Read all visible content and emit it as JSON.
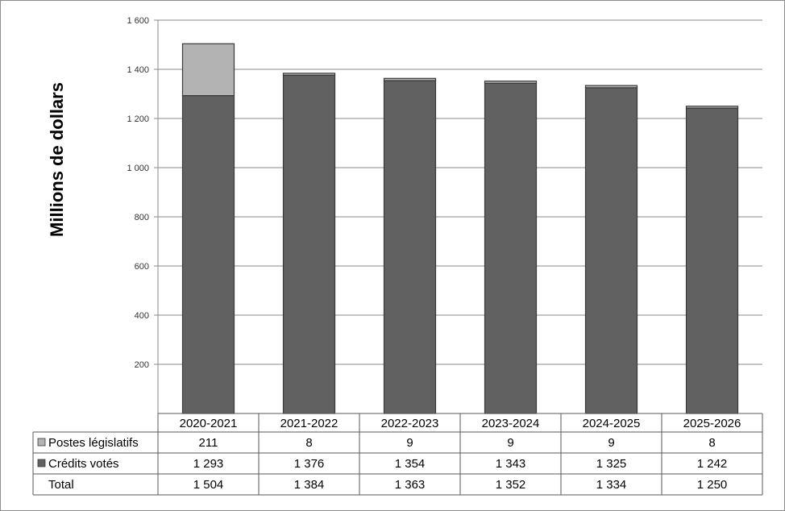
{
  "chart_data": {
    "type": "bar",
    "stacked": true,
    "title": "",
    "ylabel": "Millions  de dollars",
    "ylim": [
      0,
      1600
    ],
    "y_ticks": [
      200,
      400,
      600,
      800,
      1000,
      1200,
      1400,
      1600
    ],
    "y_tick_labels": [
      "200",
      "400",
      "600",
      "800",
      "1 000",
      "1 200",
      "1 400",
      "1 600"
    ],
    "grid": true,
    "categories": [
      "2020-2021",
      "2021-2022",
      "2022-2023",
      "2023-2024",
      "2024-2025",
      "2025-2026"
    ],
    "series": [
      {
        "name": "Crédits votés",
        "color": "#616161",
        "values": [
          1293,
          1376,
          1354,
          1343,
          1325,
          1242
        ],
        "labels": [
          "1 293",
          "1 376",
          "1 354",
          "1 343",
          "1 325",
          "1 242"
        ]
      },
      {
        "name": "Postes législatifs",
        "color": "#b3b3b3",
        "values": [
          211,
          8,
          9,
          9,
          9,
          8
        ],
        "labels": [
          "211",
          "8",
          "9",
          "9",
          "9",
          "8"
        ]
      }
    ],
    "total": {
      "name": "Total",
      "values": [
        1504,
        1384,
        1363,
        1352,
        1334,
        1250
      ],
      "labels": [
        "1 504",
        "1 384",
        "1 363",
        "1 352",
        "1 334",
        "1 250"
      ]
    },
    "legend_placement": "data-table-bottom"
  }
}
